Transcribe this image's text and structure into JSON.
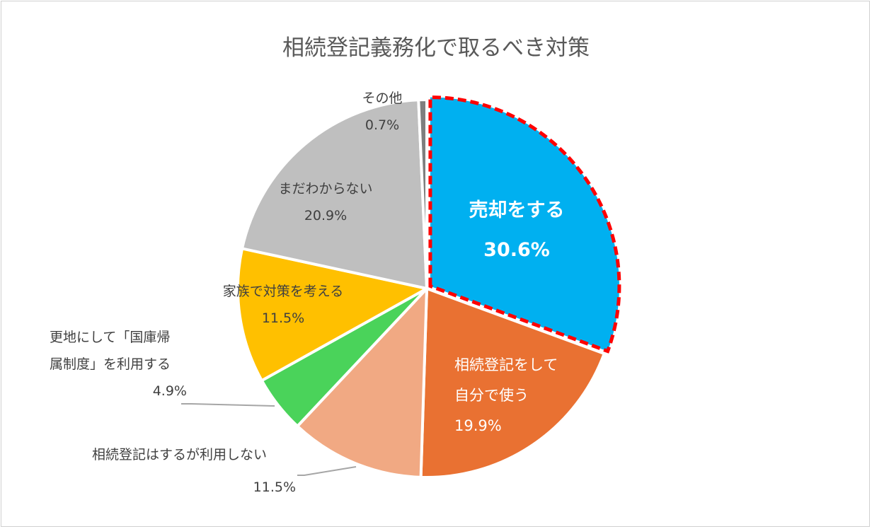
{
  "chart_data": {
    "type": "pie",
    "title": "相続登記義務化で取るべき対策",
    "start_angle": "12 o'clock, clockwise",
    "highlighted_slice": "売却をする",
    "slices": [
      {
        "label": "売却をする",
        "value": 30.6,
        "value_label": "30.6%",
        "color": "#00B0F0",
        "highlight_border": "#FF0000"
      },
      {
        "label": "相続登記をして自分で使う",
        "label_lines": [
          "相続登記をして",
          "自分で使う"
        ],
        "value": 19.9,
        "value_label": "19.9%",
        "color": "#E97132"
      },
      {
        "label": "相続登記はするが利用しない",
        "value": 11.5,
        "value_label": "11.5%",
        "color": "#F1A983"
      },
      {
        "label": "更地にして「国庫帰属制度」を利用する",
        "label_lines": [
          "更地にして「国庫帰",
          "属制度」を利用する"
        ],
        "value": 4.9,
        "value_label": "4.9%",
        "color": "#4AD35A"
      },
      {
        "label": "家族で対策を考える",
        "value": 11.5,
        "value_label": "11.5%",
        "color": "#FFC000"
      },
      {
        "label": "まだわからない",
        "value": 20.9,
        "value_label": "20.9%",
        "color": "#BFBFBF"
      },
      {
        "label": "その他",
        "value": 0.7,
        "value_label": "0.7%",
        "color": "#7F7F7F"
      }
    ]
  }
}
